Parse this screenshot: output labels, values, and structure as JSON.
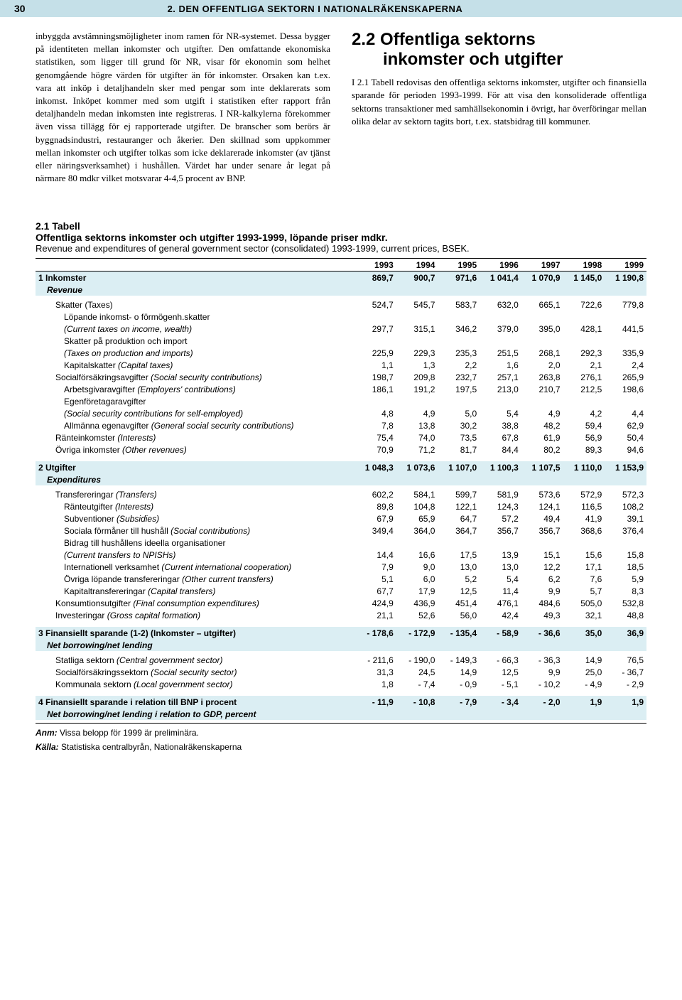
{
  "header": {
    "page_number": "30",
    "title": "2. DEN OFFENTLIGA SEKTORN I NATIONALRÄKENSKAPERNA"
  },
  "left_column_text": "inbyggda avstämningsmöjligheter inom ramen för NR-systemet. Dessa bygger på identiteten mellan inkomster och utgifter. Den omfattande ekonomiska statistiken, som ligger till grund för NR, visar för ekonomin som helhet genomgående högre värden för utgifter än för inkomster. Orsaken kan t.ex. vara att inköp i detaljhandeln sker med pengar som inte deklarerats som inkomst. Inköpet kommer med som utgift i statistiken efter rapport från detaljhandeln medan inkomsten inte registreras. I NR-kalkylerna förekommer även vissa tillägg för ej rapporterade utgifter. De branscher som berörs är byggnadsindustri, restauranger och åkerier. Den skillnad som uppkommer mellan inkomster och utgifter tolkas som icke deklarerade inkomster (av tjänst eller näringsverksamhet) i hushållen. Värdet har under senare år legat på närmare 80 mdkr vilket motsvarar 4-4,5 procent av BNP.",
  "right_column": {
    "heading_line1": "2.2 Offentliga sektorns",
    "heading_line2": "inkomster och utgifter",
    "body": "I 2.1 Tabell redovisas den offentliga sektorns inkomster, utgifter och finansiella sparande för perioden 1993-1999. För att visa den konsoliderade offentliga sektorns transaktioner med samhällsekonomin i övrigt, har överföringar mellan olika delar av sektorn tagits bort, t.ex. statsbidrag till kommuner."
  },
  "table": {
    "caption_strong1": "2.1 Tabell",
    "caption_strong2": "Offentliga sektorns inkomster och utgifter 1993-1999, löpande priser mdkr.",
    "caption_sub": "Revenue and expenditures of general government sector (consolidated) 1993-1999, current prices, BSEK.",
    "years": [
      "1993",
      "1994",
      "1995",
      "1996",
      "1997",
      "1998",
      "1999"
    ],
    "rows": [
      {
        "type": "header_band",
        "num": "1",
        "label": "Inkomster",
        "sub": "Revenue",
        "vals": [
          "869,7",
          "900,7",
          "971,6",
          "1 041,4",
          "1 070,9",
          "1 145,0",
          "1 190,8"
        ]
      },
      {
        "type": "data",
        "indent": 1,
        "label": "Skatter (Taxes)",
        "vals": [
          "524,7",
          "545,7",
          "583,7",
          "632,0",
          "665,1",
          "722,6",
          "779,8"
        ]
      },
      {
        "type": "text",
        "indent": 2,
        "label": "Löpande inkomst- o förmögenh.skatter"
      },
      {
        "type": "data",
        "indent": 2,
        "italic": true,
        "label": "(Current taxes on income, wealth)",
        "vals": [
          "297,7",
          "315,1",
          "346,2",
          "379,0",
          "395,0",
          "428,1",
          "441,5"
        ]
      },
      {
        "type": "text",
        "indent": 2,
        "label": "Skatter på produktion och import"
      },
      {
        "type": "data",
        "indent": 2,
        "italic": true,
        "label": "(Taxes on production and imports)",
        "vals": [
          "225,9",
          "229,3",
          "235,3",
          "251,5",
          "268,1",
          "292,3",
          "335,9"
        ]
      },
      {
        "type": "data",
        "indent": 2,
        "label": "Kapitalskatter (Capital taxes)",
        "italicPart": " (Capital taxes)",
        "vals": [
          "1,1",
          "1,3",
          "2,2",
          "1,6",
          "2,0",
          "2,1",
          "2,4"
        ]
      },
      {
        "type": "data",
        "indent": 1,
        "label": "Socialförsäkringsavgifter (Social security contributions)",
        "italicPart": " (Social security contributions)",
        "vals": [
          "198,7",
          "209,8",
          "232,7",
          "257,1",
          "263,8",
          "276,1",
          "265,9"
        ]
      },
      {
        "type": "data",
        "indent": 2,
        "label": "Arbetsgivaravgifter (Employers' contributions)",
        "italicPart": " (Employers' contributions)",
        "vals": [
          "186,1",
          "191,2",
          "197,5",
          "213,0",
          "210,7",
          "212,5",
          "198,6"
        ]
      },
      {
        "type": "text",
        "indent": 2,
        "label": "Egenföretagaravgifter"
      },
      {
        "type": "data",
        "indent": 2,
        "italic": true,
        "label": "(Social security contributions for self-employed)",
        "vals": [
          "4,8",
          "4,9",
          "5,0",
          "5,4",
          "4,9",
          "4,2",
          "4,4"
        ]
      },
      {
        "type": "data",
        "indent": 2,
        "label": "Allmänna egenavgifter (General social security contributions)",
        "italicPart": " (General social security contributions)",
        "vals": [
          "7,8",
          "13,8",
          "30,2",
          "38,8",
          "48,2",
          "59,4",
          "62,9"
        ]
      },
      {
        "type": "data",
        "indent": 1,
        "label": "Ränteinkomster (Interests)",
        "italicPart": " (Interests)",
        "vals": [
          "75,4",
          "74,0",
          "73,5",
          "67,8",
          "61,9",
          "56,9",
          "50,4"
        ]
      },
      {
        "type": "data",
        "indent": 1,
        "label": "Övriga inkomster (Other revenues)",
        "italicPart": " (Other revenues)",
        "vals": [
          "70,9",
          "71,2",
          "81,7",
          "84,4",
          "80,2",
          "89,3",
          "94,6"
        ]
      },
      {
        "type": "header_band",
        "num": "2",
        "label": "Utgifter",
        "sub": "Expenditures",
        "vals": [
          "1 048,3",
          "1 073,6",
          "1 107,0",
          "1 100,3",
          "1 107,5",
          "1 110,0",
          "1 153,9"
        ]
      },
      {
        "type": "data",
        "indent": 1,
        "label": "Transfereringar (Transfers)",
        "italicPart": " (Transfers)",
        "vals": [
          "602,2",
          "584,1",
          "599,7",
          "581,9",
          "573,6",
          "572,9",
          "572,3"
        ]
      },
      {
        "type": "data",
        "indent": 2,
        "label": "Ränteutgifter (Interests)",
        "italicPart": " (Interests)",
        "vals": [
          "89,8",
          "104,8",
          "122,1",
          "124,3",
          "124,1",
          "116,5",
          "108,2"
        ]
      },
      {
        "type": "data",
        "indent": 2,
        "label": "Subventioner (Subsidies)",
        "italicPart": " (Subsidies)",
        "vals": [
          "67,9",
          "65,9",
          "64,7",
          "57,2",
          "49,4",
          "41,9",
          "39,1"
        ]
      },
      {
        "type": "data",
        "indent": 2,
        "label": "Sociala förmåner till hushåll (Social contributions)",
        "italicPart": " (Social contributions)",
        "vals": [
          "349,4",
          "364,0",
          "364,7",
          "356,7",
          "356,7",
          "368,6",
          "376,4"
        ]
      },
      {
        "type": "text",
        "indent": 2,
        "label": "Bidrag till hushållens ideella organisationer"
      },
      {
        "type": "data",
        "indent": 2,
        "italic": true,
        "label": "(Current transfers to NPISHs)",
        "vals": [
          "14,4",
          "16,6",
          "17,5",
          "13,9",
          "15,1",
          "15,6",
          "15,8"
        ]
      },
      {
        "type": "data",
        "indent": 2,
        "label": "Internationell verksamhet (Current international cooperation)",
        "italicPart": " (Current international cooperation)",
        "vals": [
          "7,9",
          "9,0",
          "13,0",
          "13,0",
          "12,2",
          "17,1",
          "18,5"
        ]
      },
      {
        "type": "data",
        "indent": 2,
        "label": "Övriga löpande transfereringar (Other current transfers)",
        "italicPart": " (Other current transfers)",
        "vals": [
          "5,1",
          "6,0",
          "5,2",
          "5,4",
          "6,2",
          "7,6",
          "5,9"
        ]
      },
      {
        "type": "data",
        "indent": 2,
        "label": "Kapitaltransfereringar (Capital transfers)",
        "italicPart": " (Capital transfers)",
        "vals": [
          "67,7",
          "17,9",
          "12,5",
          "11,4",
          "9,9",
          "5,7",
          "8,3"
        ]
      },
      {
        "type": "data",
        "indent": 1,
        "label": "Konsumtionsutgifter (Final consumption expenditures)",
        "italicPart": " (Final consumption expenditures)",
        "vals": [
          "424,9",
          "436,9",
          "451,4",
          "476,1",
          "484,6",
          "505,0",
          "532,8"
        ]
      },
      {
        "type": "data",
        "indent": 1,
        "label": "Investeringar (Gross capital formation)",
        "italicPart": " (Gross capital formation)",
        "vals": [
          "21,1",
          "52,6",
          "56,0",
          "42,4",
          "49,3",
          "32,1",
          "48,8"
        ]
      },
      {
        "type": "header_band",
        "num": "3",
        "label": "Finansiellt sparande (1-2) (Inkomster – utgifter)",
        "sub": "Net borrowing/net lending",
        "vals": [
          "- 178,6",
          "- 172,9",
          "- 135,4",
          "- 58,9",
          "- 36,6",
          "35,0",
          "36,9"
        ]
      },
      {
        "type": "data",
        "indent": 1,
        "label": "Statliga sektorn (Central government sector)",
        "italicPart": " (Central government sector)",
        "vals": [
          "- 211,6",
          "- 190,0",
          "- 149,3",
          "- 66,3",
          "- 36,3",
          "14,9",
          "76,5"
        ]
      },
      {
        "type": "data",
        "indent": 1,
        "label": "Socialförsäkringssektorn (Social security sector)",
        "italicPart": " (Social security sector)",
        "vals": [
          "31,3",
          "24,5",
          "14,9",
          "12,5",
          "9,9",
          "25,0",
          "- 36,7"
        ]
      },
      {
        "type": "data",
        "indent": 1,
        "label": "Kommunala sektorn (Local government sector)",
        "italicPart": " (Local government sector)",
        "vals": [
          "1,8",
          "- 7,4",
          "- 0,9",
          "- 5,1",
          "- 10,2",
          "- 4,9",
          "- 2,9"
        ]
      },
      {
        "type": "header_band",
        "num": "4",
        "label": "Finansiellt sparande i relation till BNP i procent",
        "sub": "Net borrowing/net lending i relation to GDP, percent",
        "vals": [
          "- 11,9",
          "- 10,8",
          "- 7,9",
          "- 3,4",
          "- 2,0",
          "1,9",
          "1,9"
        ]
      }
    ],
    "footnote_anm": "Anm: Vissa belopp för 1999 är preliminära.",
    "footnote_kalla": "Källa: Statistiska centralbyrån, Nationalräkenskaperna"
  }
}
